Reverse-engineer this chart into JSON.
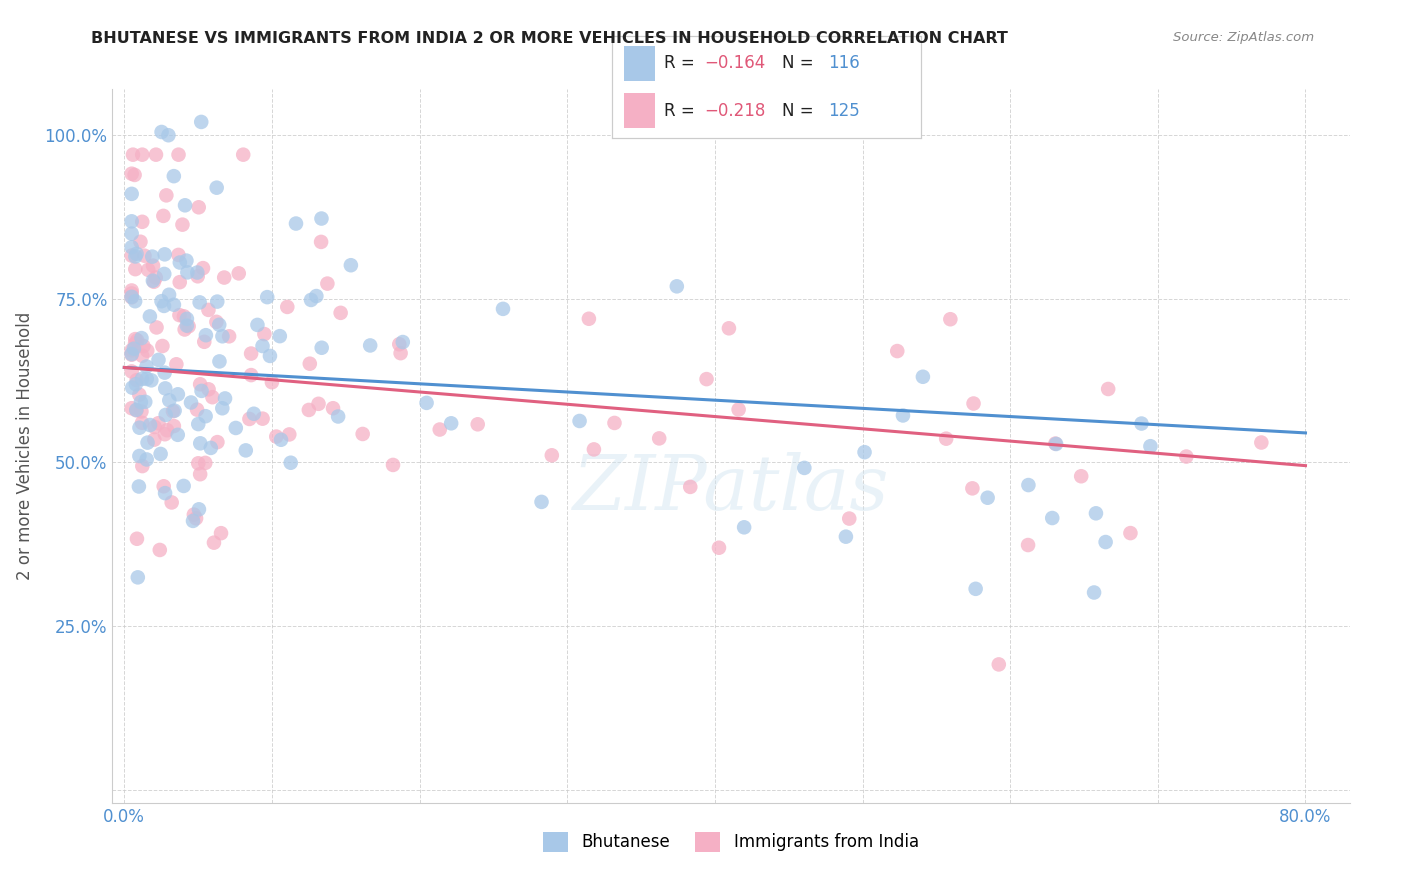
{
  "title": "BHUTANESE VS IMMIGRANTS FROM INDIA 2 OR MORE VEHICLES IN HOUSEHOLD CORRELATION CHART",
  "source": "Source: ZipAtlas.com",
  "ylabel": "2 or more Vehicles in Household",
  "watermark": "ZIPatlas",
  "x_min": 0.0,
  "x_max": 0.8,
  "y_min": 0.0,
  "y_max": 1.05,
  "blue_R": -0.164,
  "blue_N": 116,
  "pink_R": -0.218,
  "pink_N": 125,
  "blue_color": "#a8c8e8",
  "pink_color": "#f5b0c5",
  "blue_line_color": "#5090d0",
  "pink_line_color": "#e06080",
  "blue_line_y0": 0.645,
  "blue_line_y1": 0.545,
  "pink_line_y0": 0.645,
  "pink_line_y1": 0.495,
  "tick_color": "#5090d0",
  "grid_color": "#cccccc",
  "title_color": "#222222",
  "source_color": "#888888",
  "ylabel_color": "#555555"
}
